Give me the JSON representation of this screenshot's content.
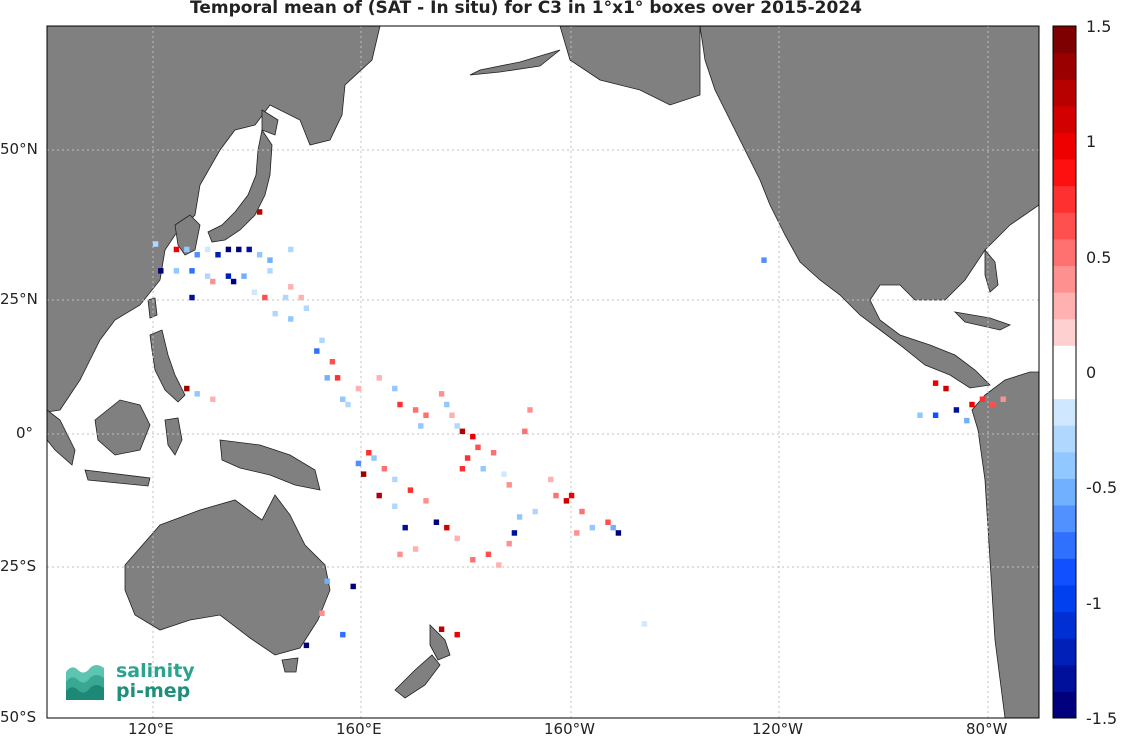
{
  "title": "Temporal mean of (SAT - In situ) for C3 in 1°x1° boxes over 2015-2024",
  "axes": {
    "lat_ticks": [
      "50°N",
      "25°N",
      "0°",
      "25°S",
      "50°S"
    ],
    "lon_ticks": [
      "120°E",
      "160°E",
      "160°W",
      "120°W",
      "80°W"
    ]
  },
  "colorbar": {
    "labels": [
      "1.5",
      "1",
      "0.5",
      "0",
      "-0.5",
      "-1",
      "-1.5"
    ],
    "range": [
      -1.5,
      1.5
    ],
    "colors": [
      "#00007f",
      "#00109b",
      "#0020b7",
      "#0030d3",
      "#0040ef",
      "#1050ff",
      "#3070ff",
      "#5090ff",
      "#70b0ff",
      "#90c8ff",
      "#b0d8ff",
      "#d0e8ff",
      "#ffffff",
      "#ffffff",
      "#ffd0d0",
      "#ffb0b0",
      "#ff9090",
      "#ff7070",
      "#ff5050",
      "#ff3030",
      "#ff1010",
      "#ef0000",
      "#d30000",
      "#b70000",
      "#9b0000",
      "#7f0000"
    ]
  },
  "map": {
    "lon_range": [
      "100°E",
      "70°W"
    ],
    "lat_range": [
      "50°S",
      "80°N"
    ],
    "land_color": "#808080",
    "ocean_color": "#ffffff",
    "grid_style": "dotted"
  },
  "logo": {
    "line1": "salinity",
    "line2": "pi-mep"
  },
  "chart_data": {
    "type": "heatmap",
    "title": "Temporal mean of (SAT - In situ) for C3 in 1°x1° boxes over 2015-2024",
    "value_range": [
      -1.5,
      1.5
    ],
    "points": [
      {
        "lon": 140.5,
        "lat": 41.5,
        "v": 1.2
      },
      {
        "lon": 120.5,
        "lat": 35.5,
        "v": -0.3
      },
      {
        "lon": 124.5,
        "lat": 34.5,
        "v": 1.0
      },
      {
        "lon": 126.5,
        "lat": 34.5,
        "v": -0.4
      },
      {
        "lon": 130.5,
        "lat": 34.5,
        "v": -0.2
      },
      {
        "lon": 134.5,
        "lat": 34.5,
        "v": -1.5
      },
      {
        "lon": 136.5,
        "lat": 34.5,
        "v": -1.4
      },
      {
        "lon": 138.5,
        "lat": 34.5,
        "v": -1.3
      },
      {
        "lon": 128.5,
        "lat": 33.5,
        "v": -0.6
      },
      {
        "lon": 132.5,
        "lat": 33.5,
        "v": -1.2
      },
      {
        "lon": 140.5,
        "lat": 33.5,
        "v": -0.4
      },
      {
        "lon": 146.5,
        "lat": 34.5,
        "v": -0.3
      },
      {
        "lon": 142.5,
        "lat": 32.5,
        "v": -0.5
      },
      {
        "lon": 127.5,
        "lat": 30.5,
        "v": -0.7
      },
      {
        "lon": 121.5,
        "lat": 30.5,
        "v": -1.4
      },
      {
        "lon": 124.5,
        "lat": 30.5,
        "v": -0.4
      },
      {
        "lon": 130.5,
        "lat": 29.5,
        "v": -0.3
      },
      {
        "lon": 134.5,
        "lat": 29.5,
        "v": -1.2
      },
      {
        "lon": 137.5,
        "lat": 29.5,
        "v": -0.5
      },
      {
        "lon": 142.5,
        "lat": 30.5,
        "v": -0.3
      },
      {
        "lon": 146.5,
        "lat": 27.5,
        "v": 0.3
      },
      {
        "lon": 155.5,
        "lat": 30.5,
        "v": 0.1
      },
      {
        "lon": 131.5,
        "lat": 28.5,
        "v": 0.4
      },
      {
        "lon": 135.5,
        "lat": 28.5,
        "v": -1.5
      },
      {
        "lon": 139.5,
        "lat": 26.5,
        "v": -0.2
      },
      {
        "lon": 127.5,
        "lat": 25.5,
        "v": -1.3
      },
      {
        "lon": 141.5,
        "lat": 25.5,
        "v": 0.6
      },
      {
        "lon": 145.5,
        "lat": 25.5,
        "v": -0.3
      },
      {
        "lon": 148.5,
        "lat": 25.5,
        "v": 0.3
      },
      {
        "lon": 143.5,
        "lat": 22.5,
        "v": -0.3
      },
      {
        "lon": 146.5,
        "lat": 21.5,
        "v": -0.4
      },
      {
        "lon": 149.5,
        "lat": 23.5,
        "v": -0.3
      },
      {
        "lon": 152.5,
        "lat": 17.5,
        "v": -0.3
      },
      {
        "lon": 151.5,
        "lat": 15.5,
        "v": -0.7
      },
      {
        "lon": 154.5,
        "lat": 13.5,
        "v": 0.6
      },
      {
        "lon": 153.5,
        "lat": 10.5,
        "v": -0.5
      },
      {
        "lon": 155.5,
        "lat": 10.5,
        "v": 0.7
      },
      {
        "lon": 157.5,
        "lat": 5.5,
        "v": -0.3
      },
      {
        "lon": 156.5,
        "lat": 6.5,
        "v": -0.4
      },
      {
        "lon": 159.5,
        "lat": 8.5,
        "v": 0.3
      },
      {
        "lon": 163.5,
        "lat": 10.5,
        "v": 0.3
      },
      {
        "lon": 166.5,
        "lat": 8.5,
        "v": -0.4
      },
      {
        "lon": 167.5,
        "lat": 5.5,
        "v": 0.8
      },
      {
        "lon": 170.5,
        "lat": 4.5,
        "v": 0.5
      },
      {
        "lon": 172.5,
        "lat": 3.5,
        "v": 0.5
      },
      {
        "lon": 175.5,
        "lat": 7.5,
        "v": 0.4
      },
      {
        "lon": 176.5,
        "lat": 5.5,
        "v": -0.4
      },
      {
        "lon": 177.5,
        "lat": 3.5,
        "v": 0.3
      },
      {
        "lon": 178.5,
        "lat": 1.5,
        "v": -0.3
      },
      {
        "lon": 171.5,
        "lat": 1.5,
        "v": -0.4
      },
      {
        "lon": 179.5,
        "lat": 0.5,
        "v": 1.2
      },
      {
        "lon": 181.5,
        "lat": -0.5,
        "v": 1.0
      },
      {
        "lon": 182.5,
        "lat": -2.5,
        "v": 0.6
      },
      {
        "lon": 185.5,
        "lat": -3.5,
        "v": 0.5
      },
      {
        "lon": 180.5,
        "lat": -4.5,
        "v": 0.8
      },
      {
        "lon": 179.5,
        "lat": -6.5,
        "v": 0.7
      },
      {
        "lon": 183.5,
        "lat": -6.5,
        "v": -0.4
      },
      {
        "lon": 187.5,
        "lat": -7.5,
        "v": -0.2
      },
      {
        "lon": 188.5,
        "lat": -9.5,
        "v": 0.4
      },
      {
        "lon": 192.5,
        "lat": 4.5,
        "v": 0.4
      },
      {
        "lon": 191.5,
        "lat": 0.5,
        "v": 0.5
      },
      {
        "lon": 196.5,
        "lat": -8.5,
        "v": 0.3
      },
      {
        "lon": 197.5,
        "lat": -11.5,
        "v": 0.5
      },
      {
        "lon": 199.5,
        "lat": -12.5,
        "v": 1.1
      },
      {
        "lon": 200.5,
        "lat": -11.5,
        "v": 1.0
      },
      {
        "lon": 202.5,
        "lat": -14.5,
        "v": 0.5
      },
      {
        "lon": 207.5,
        "lat": -16.5,
        "v": 0.6
      },
      {
        "lon": 208.5,
        "lat": -17.5,
        "v": -0.5
      },
      {
        "lon": 209.5,
        "lat": -18.5,
        "v": -1.4
      },
      {
        "lon": 204.5,
        "lat": -17.5,
        "v": -0.4
      },
      {
        "lon": 201.5,
        "lat": -18.5,
        "v": 0.4
      },
      {
        "lon": 193.5,
        "lat": -14.5,
        "v": -0.3
      },
      {
        "lon": 190.5,
        "lat": -15.5,
        "v": -0.4
      },
      {
        "lon": 189.5,
        "lat": -18.5,
        "v": -1.3
      },
      {
        "lon": 188.5,
        "lat": -20.5,
        "v": 0.4
      },
      {
        "lon": 184.5,
        "lat": -22.5,
        "v": 0.6
      },
      {
        "lon": 181.5,
        "lat": -23.5,
        "v": 0.5
      },
      {
        "lon": 186.5,
        "lat": -24.5,
        "v": 0.3
      },
      {
        "lon": 178.5,
        "lat": -19.5,
        "v": 0.3
      },
      {
        "lon": 176.5,
        "lat": -17.5,
        "v": 1.1
      },
      {
        "lon": 174.5,
        "lat": -16.5,
        "v": -1.5
      },
      {
        "lon": 172.5,
        "lat": -12.5,
        "v": 0.4
      },
      {
        "lon": 169.5,
        "lat": -10.5,
        "v": 0.7
      },
      {
        "lon": 166.5,
        "lat": -8.5,
        "v": -0.3
      },
      {
        "lon": 164.5,
        "lat": -6.5,
        "v": 0.5
      },
      {
        "lon": 162.5,
        "lat": -4.5,
        "v": -0.4
      },
      {
        "lon": 160.5,
        "lat": -7.5,
        "v": 1.3
      },
      {
        "lon": 159.5,
        "lat": -5.5,
        "v": -0.6
      },
      {
        "lon": 161.5,
        "lat": -3.5,
        "v": 0.7
      },
      {
        "lon": 163.5,
        "lat": -11.5,
        "v": 1.2
      },
      {
        "lon": 166.5,
        "lat": -13.5,
        "v": -0.3
      },
      {
        "lon": 168.5,
        "lat": -17.5,
        "v": -1.3
      },
      {
        "lon": 167.5,
        "lat": -22.5,
        "v": 0.4
      },
      {
        "lon": 170.5,
        "lat": -21.5,
        "v": 0.3
      },
      {
        "lon": 153.5,
        "lat": -27.5,
        "v": -0.5
      },
      {
        "lon": 158.5,
        "lat": -28.5,
        "v": -1.5
      },
      {
        "lon": 152.5,
        "lat": -33.5,
        "v": 0.4
      },
      {
        "lon": 156.5,
        "lat": -37.5,
        "v": -0.7
      },
      {
        "lon": 149.5,
        "lat": -39.5,
        "v": -1.4
      },
      {
        "lon": 175.5,
        "lat": -36.5,
        "v": 1.2
      },
      {
        "lon": 178.5,
        "lat": -37.5,
        "v": 1.0
      },
      {
        "lon": 214.5,
        "lat": -35.5,
        "v": -0.2
      },
      {
        "lon": 237.5,
        "lat": 32.5,
        "v": -0.6
      },
      {
        "lon": 270.5,
        "lat": 9.5,
        "v": 1.0
      },
      {
        "lon": 272.5,
        "lat": 8.5,
        "v": 1.1
      },
      {
        "lon": 267.5,
        "lat": 3.5,
        "v": -0.4
      },
      {
        "lon": 270.5,
        "lat": 3.5,
        "v": -0.9
      },
      {
        "lon": 274.5,
        "lat": 4.5,
        "v": -1.3
      },
      {
        "lon": 276.5,
        "lat": 2.5,
        "v": -0.5
      },
      {
        "lon": 277.5,
        "lat": 5.5,
        "v": 1.0
      },
      {
        "lon": 279.5,
        "lat": 6.5,
        "v": 0.8
      },
      {
        "lon": 281.5,
        "lat": 5.5,
        "v": 0.6
      },
      {
        "lon": 283.5,
        "lat": 6.5,
        "v": 0.4
      },
      {
        "lon": 126.5,
        "lat": 8.5,
        "v": 1.3
      },
      {
        "lon": 128.5,
        "lat": 7.5,
        "v": -0.4
      },
      {
        "lon": 131.5,
        "lat": 6.5,
        "v": 0.3
      }
    ]
  }
}
